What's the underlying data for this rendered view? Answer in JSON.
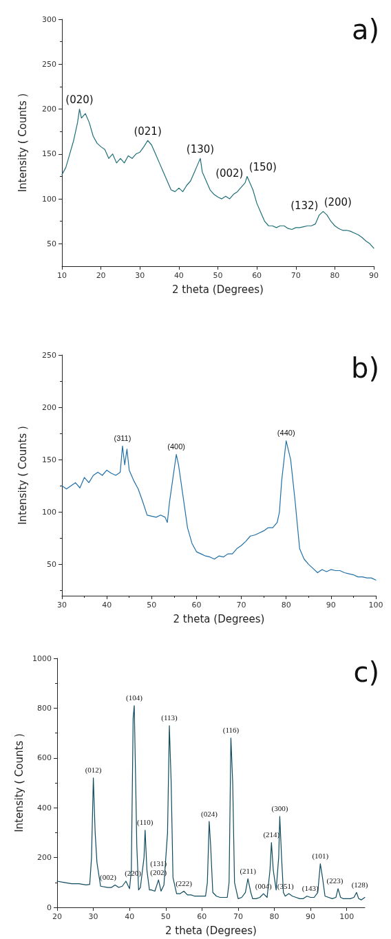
{
  "chart_data": [
    {
      "type": "line",
      "title": "a)",
      "xlabel": "2 theta (Degrees)",
      "ylabel": "Intensity ( Counts )",
      "xlim": [
        10,
        90
      ],
      "xticks": [
        10,
        20,
        30,
        40,
        50,
        60,
        70,
        80,
        90
      ],
      "ylim": [
        25,
        300
      ],
      "yticks": [
        50,
        100,
        150,
        200,
        250,
        300
      ],
      "grid": false,
      "marker": "none",
      "line_style": "solid",
      "annotations": [
        {
          "text": "(020)",
          "x": 14.5,
          "y": 200
        },
        {
          "text": "(021)",
          "x": 32,
          "y": 165
        },
        {
          "text": "(130)",
          "x": 45.5,
          "y": 145
        },
        {
          "text": "(002)",
          "x": 57,
          "y": 118
        },
        {
          "text": "(150)",
          "x": 57.5,
          "y": 125
        },
        {
          "text": "(132)",
          "x": 76,
          "y": 82
        },
        {
          "text": "(200)",
          "x": 77,
          "y": 86
        }
      ],
      "series": [
        {
          "color": "#1f6f78",
          "x": [
            10,
            11,
            12,
            13,
            14,
            14.5,
            15,
            16,
            17,
            18,
            19,
            20,
            21,
            22,
            23,
            24,
            25,
            26,
            27,
            28,
            29,
            30,
            31,
            32,
            33,
            34,
            35,
            36,
            37,
            38,
            39,
            40,
            41,
            42,
            43,
            44,
            45,
            45.5,
            46,
            47,
            48,
            49,
            50,
            51,
            52,
            53,
            54,
            55,
            56,
            57,
            57.5,
            58,
            59,
            60,
            61,
            62,
            63,
            64,
            65,
            66,
            67,
            68,
            69,
            70,
            71,
            72,
            73,
            74,
            75,
            76,
            77,
            78,
            79,
            80,
            81,
            82,
            83,
            84,
            85,
            86,
            87,
            88,
            89,
            90
          ],
          "values": [
            127,
            135,
            150,
            165,
            185,
            200,
            190,
            195,
            185,
            170,
            162,
            158,
            155,
            145,
            150,
            140,
            145,
            140,
            148,
            145,
            150,
            152,
            158,
            165,
            160,
            150,
            140,
            130,
            120,
            110,
            108,
            112,
            108,
            115,
            120,
            130,
            140,
            145,
            130,
            120,
            110,
            105,
            102,
            100,
            103,
            100,
            105,
            108,
            113,
            118,
            125,
            120,
            110,
            95,
            85,
            75,
            70,
            70,
            68,
            70,
            70,
            67,
            66,
            68,
            68,
            69,
            70,
            70,
            72,
            82,
            86,
            82,
            75,
            70,
            67,
            65,
            65,
            64,
            62,
            60,
            57,
            53,
            50,
            45
          ]
        }
      ]
    },
    {
      "type": "line",
      "title": "b)",
      "xlabel": "2 theta (Degrees)",
      "ylabel": "Intensity ( Counts )",
      "xlim": [
        30,
        100
      ],
      "xticks": [
        30,
        40,
        50,
        60,
        70,
        80,
        90,
        100
      ],
      "ylim": [
        20,
        250
      ],
      "yticks": [
        50,
        100,
        150,
        200,
        250
      ],
      "grid": false,
      "marker": "none",
      "line_style": "solid",
      "annotations": [
        {
          "text": "(311)",
          "x": 43.5,
          "y": 163
        },
        {
          "text": "(400)",
          "x": 55.5,
          "y": 155
        },
        {
          "text": "(440)",
          "x": 80,
          "y": 168
        }
      ],
      "series": [
        {
          "color": "#1f6fa8",
          "x": [
            30,
            31,
            32,
            33,
            34,
            35,
            36,
            37,
            38,
            39,
            40,
            41,
            42,
            43,
            43.5,
            44,
            44.5,
            45,
            46,
            47,
            48,
            49,
            50,
            51,
            52,
            53,
            53.5,
            54,
            55,
            55.5,
            56,
            57,
            58,
            59,
            60,
            61,
            62,
            63,
            64,
            65,
            66,
            67,
            68,
            69,
            70,
            71,
            72,
            73,
            74,
            75,
            76,
            77,
            78,
            78.5,
            79,
            80,
            81,
            82,
            83,
            84,
            85,
            86,
            87,
            88,
            89,
            90,
            91,
            92,
            93,
            94,
            95,
            96,
            97,
            98,
            99,
            100
          ],
          "values": [
            125,
            122,
            125,
            128,
            123,
            133,
            128,
            135,
            138,
            135,
            140,
            137,
            135,
            138,
            163,
            145,
            160,
            140,
            130,
            122,
            110,
            97,
            96,
            95,
            97,
            95,
            90,
            110,
            140,
            155,
            145,
            115,
            85,
            70,
            62,
            60,
            58,
            57,
            55,
            58,
            57,
            60,
            60,
            65,
            68,
            72,
            77,
            78,
            80,
            82,
            85,
            85,
            90,
            100,
            130,
            168,
            150,
            110,
            65,
            55,
            50,
            46,
            42,
            45,
            43,
            45,
            44,
            44,
            42,
            41,
            40,
            38,
            38,
            37,
            37,
            35
          ]
        }
      ]
    },
    {
      "type": "line",
      "title": "c)",
      "xlabel": "2 theta (Degrees)",
      "ylabel": "Intensity ( Counts )",
      "xlim": [
        20,
        105
      ],
      "xticks": [
        20,
        30,
        40,
        50,
        60,
        70,
        80,
        90,
        100
      ],
      "ylim": [
        0,
        1000
      ],
      "yticks": [
        0,
        200,
        400,
        600,
        800,
        1000
      ],
      "grid": false,
      "marker": "none",
      "line_style": "solid",
      "annotations": [
        {
          "text": "(012)",
          "x": 30,
          "y": 520
        },
        {
          "text": "(104)",
          "x": 41.3,
          "y": 810
        },
        {
          "text": "(113)",
          "x": 51,
          "y": 730
        },
        {
          "text": "(116)",
          "x": 68,
          "y": 680
        },
        {
          "text": "(110)",
          "x": 44.3,
          "y": 310
        },
        {
          "text": "(024)",
          "x": 62,
          "y": 345
        },
        {
          "text": "(214)",
          "x": 79.2,
          "y": 260
        },
        {
          "text": "(300)",
          "x": 81.5,
          "y": 365
        },
        {
          "text": "(211)",
          "x": 72.7,
          "y": 115
        },
        {
          "text": "(101)",
          "x": 92.7,
          "y": 175
        },
        {
          "text": "(223)",
          "x": 97.6,
          "y": 75
        },
        {
          "text": "(128)",
          "x": 102.7,
          "y": 60
        },
        {
          "text": "(002)",
          "x": 36,
          "y": 90
        },
        {
          "text": "(220)",
          "x": 39,
          "y": 105
        },
        {
          "text": "(131)",
          "x": 48,
          "y": 110
        },
        {
          "text": "(202)",
          "x": 48,
          "y": 110
        },
        {
          "text": "(222)",
          "x": 55,
          "y": 65
        },
        {
          "text": "(004)",
          "x": 77,
          "y": 55
        },
        {
          "text": "(351)",
          "x": 84,
          "y": 55
        },
        {
          "text": "(143)",
          "x": 89,
          "y": 45
        }
      ],
      "series": [
        {
          "color": "#0d4a5e",
          "x": [
            20,
            22,
            24,
            26,
            28,
            29,
            29.5,
            30,
            30.5,
            31,
            32,
            34,
            35,
            36,
            37,
            38,
            39,
            40,
            40.5,
            41,
            41.3,
            41.7,
            42,
            42.5,
            43,
            44,
            44.3,
            44.8,
            45.5,
            46,
            47,
            48,
            48.7,
            49.5,
            50.5,
            51,
            51.5,
            52,
            53,
            54,
            55,
            56,
            57,
            58,
            59,
            60,
            61,
            61.5,
            62,
            62.4,
            63,
            64,
            65,
            66,
            67,
            67.5,
            68,
            68.5,
            69,
            70,
            71,
            72,
            72.7,
            73.5,
            74,
            75,
            76,
            77,
            78,
            78.8,
            79.2,
            79.7,
            80.5,
            81.2,
            81.5,
            82,
            82.5,
            83,
            84,
            85,
            86,
            87,
            88,
            89,
            90,
            91,
            92,
            92.7,
            93.3,
            94,
            95,
            96,
            97,
            97.6,
            98.3,
            99,
            100,
            101,
            102,
            102.7,
            103.3,
            104,
            105
          ],
          "values": [
            105,
            100,
            95,
            95,
            90,
            92,
            200,
            520,
            300,
            180,
            85,
            80,
            80,
            90,
            80,
            85,
            105,
            75,
            150,
            760,
            810,
            500,
            250,
            70,
            80,
            200,
            310,
            150,
            70,
            70,
            65,
            110,
            65,
            90,
            300,
            730,
            500,
            120,
            55,
            55,
            65,
            50,
            50,
            45,
            45,
            45,
            45,
            100,
            345,
            250,
            60,
            45,
            40,
            40,
            40,
            100,
            680,
            500,
            100,
            35,
            40,
            60,
            115,
            60,
            35,
            35,
            40,
            55,
            40,
            150,
            260,
            150,
            70,
            200,
            365,
            200,
            60,
            45,
            55,
            45,
            40,
            35,
            35,
            45,
            40,
            40,
            60,
            175,
            120,
            45,
            40,
            35,
            40,
            75,
            40,
            35,
            35,
            35,
            40,
            60,
            35,
            30,
            40
          ]
        }
      ]
    }
  ]
}
